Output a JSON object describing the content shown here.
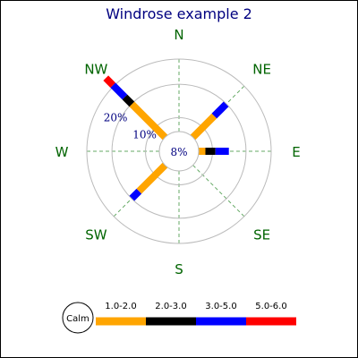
{
  "chart_data": {
    "type": "windrose",
    "title": "Windrose example 2",
    "directions": [
      "N",
      "NE",
      "E",
      "SE",
      "S",
      "SW",
      "W",
      "NW"
    ],
    "radial_ticks": [
      "10%",
      "20%"
    ],
    "radial_values": [
      10,
      20
    ],
    "radial_max": 27.5,
    "calm": {
      "label": "Calm",
      "value": "8%",
      "value_num": 8
    },
    "bins": [
      {
        "label": "1.0-2.0",
        "color": "#ffa500"
      },
      {
        "label": "2.0-3.0",
        "color": "#000000"
      },
      {
        "label": "3.0-5.0",
        "color": "#0000ff"
      },
      {
        "label": "5.0-6.0",
        "color": "#ff0000"
      }
    ],
    "series": [
      {
        "direction": "NE",
        "values": [
          9,
          0,
          5,
          0
        ]
      },
      {
        "direction": "E",
        "values": [
          2,
          3,
          4,
          0
        ]
      },
      {
        "direction": "SW",
        "values": [
          11,
          0,
          3,
          0
        ]
      },
      {
        "direction": "NW",
        "values": [
          14,
          3,
          5,
          3
        ]
      }
    ],
    "colors": {
      "title": "#000080",
      "direction_label": "#006400",
      "ring": "#bbbbbb",
      "axis": "#66aa66",
      "tick": "#000080"
    }
  }
}
